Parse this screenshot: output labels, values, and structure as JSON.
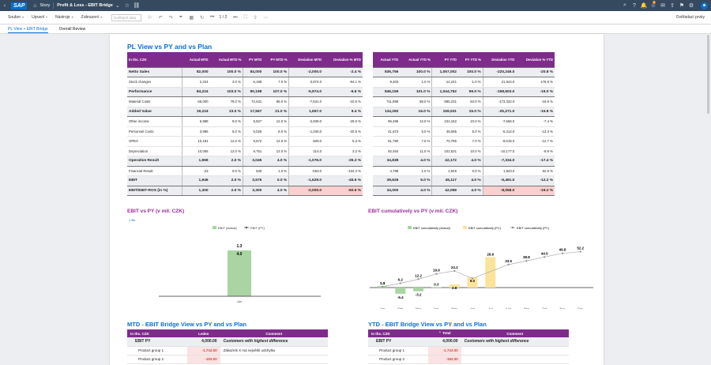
{
  "shell": {
    "logo": "SAP",
    "app": "Story",
    "story": "Profit & Loss - EBIT Bridge",
    "notif_count": "6"
  },
  "toolbar": {
    "menus": [
      "Soubor",
      "Upravit",
      "Nástroje",
      "Zobrazení"
    ],
    "search_placeholder": "Dvěřejně data",
    "page": "1 / 2",
    "right": "Ověřadací prvky"
  },
  "tabs": [
    "PL View + EBIT Bridge",
    "Overall Review"
  ],
  "pl": {
    "title": "PL View vs PY and vs Plan",
    "mtd_headers": [
      "In ths. CZK",
      "Actual MTD",
      "Actual MTD %",
      "PY MTD",
      "PY MTD %",
      "Deviation MTD",
      "Deviation % MTD"
    ],
    "ytd_headers": [
      "Actual YTD",
      "Actual YTD %",
      "PY YTD",
      "PY YTD %",
      "Deviation YTD",
      "Deviation % YTD"
    ],
    "rows": [
      {
        "label": "Netto Sales",
        "b": true,
        "m": [
          "82,000",
          "100.0 %",
          "84,000",
          "100.0 %",
          "-2,000.0",
          "-2.4 %"
        ],
        "y": [
          "836,756",
          "100.0 %",
          "1,057,002",
          "100.0 %",
          "-220,246.0",
          "-20.8 %"
        ]
      },
      {
        "label": "Stock changes",
        "m": [
          "2,224",
          "3.0 %",
          "6,198",
          "7.0 %",
          "-3,974.0",
          "-64.1 %"
        ],
        "y": [
          "9,403",
          "1.0 %",
          "-12,241",
          "-1.0 %",
          "21,644.0",
          "176.8 %"
        ]
      },
      {
        "label": "Performance",
        "b": true,
        "m": [
          "84,224",
          "103.0 %",
          "90,198",
          "107.0 %",
          "-5,974.0",
          "-6.6 %"
        ],
        "y": [
          "846,159",
          "101.0 %",
          "1,044,762",
          "99.0 %",
          "-198,603.0",
          "-19.0 %"
        ]
      },
      {
        "label": "Material Costs",
        "m": [
          "65,000",
          "79.0 %",
          "72,631",
          "86.0 %",
          "-7,631.0",
          "-10.5 %"
        ],
        "y": [
          "711,899",
          "85.0 %",
          "885,231",
          "84.0 %",
          "-173,332.0",
          "-19.6 %"
        ]
      },
      {
        "label": "Added Value",
        "b": true,
        "m": [
          "19,224",
          "23.0 %",
          "17,567",
          "21.0 %",
          "1,657.0",
          "9.4 %"
        ],
        "y": [
          "134,260",
          "16.0 %",
          "159,531",
          "15.0 %",
          "-25,271.0",
          "-15.8 %"
        ]
      },
      {
        "label": "Other income",
        "m": [
          "6,988",
          "9.0 %",
          "9,927",
          "12.0 %",
          "-2,939.0",
          "-29.6 %"
        ],
        "y": [
          "96,486",
          "12.0 %",
          "104,152",
          "10.0 %",
          "-7,666.0",
          "-7.4 %"
        ]
      },
      {
        "label": "Personnel Costs",
        "m": [
          "3,996",
          "5.0 %",
          "5,026",
          "6.0 %",
          "-1,030.0",
          "-20.5 %"
        ],
        "y": [
          "41,673",
          "5.0 %",
          "48,085",
          "5.0 %",
          "-6,412.0",
          "-13.3 %"
        ]
      },
      {
        "label": "OPEX",
        "m": [
          "10,181",
          "12.0 %",
          "9,672",
          "12.0 %",
          "509.0",
          "5.3 %"
        ],
        "y": [
          "61,780",
          "7.0 %",
          "70,795",
          "7.0 %",
          "-9,015.0",
          "-12.7 %"
        ]
      },
      {
        "label": "Depreciation",
        "m": [
          "10,065",
          "12.0 %",
          "9,751",
          "12.0 %",
          "314.0",
          "3.2 %"
        ],
        "y": [
          "92,454",
          "11.0 %",
          "102,631",
          "10.0 %",
          "-10,177.0",
          "-9.9 %"
        ]
      },
      {
        "label": "Operative Result",
        "b": true,
        "m": [
          "1,969",
          "2.0 %",
          "3,045",
          "4.0 %",
          "-1,076.0",
          "-35.3 %"
        ],
        "y": [
          "34,838",
          "4.0 %",
          "42,172",
          "4.0 %",
          "-7,334.0",
          "-17.4 %"
        ]
      },
      {
        "label": "Financial Result",
        "m": [
          "-23",
          "0.0 %",
          "530",
          "1.0 %",
          "-553.0",
          "-104.3 %"
        ],
        "y": [
          "4,788",
          "1.0 %",
          "2,945",
          "0.0 %",
          "1,843.0",
          "62.6 %"
        ]
      },
      {
        "label": "EBIT",
        "b": true,
        "m": [
          "1,946",
          "2.0 %",
          "3,575",
          "0.0 %",
          "-1,629.0",
          "-45.6 %"
        ],
        "y": [
          "39,626",
          "5.0 %",
          "45,117",
          "4.0 %",
          "-5,491.0",
          "-12.2 %"
        ]
      },
      {
        "label": "EBIT/EBIT-ROS (in %)",
        "b": true,
        "pk": true,
        "m": [
          "1,300",
          "2.0 %",
          "3,300",
          "4.0 %",
          "-2,000.0",
          "-60.6 %"
        ],
        "y": [
          "34,000",
          "4.0 %",
          "42,058",
          "4.0 %",
          "-8,058.0",
          "-19.2 %"
        ]
      }
    ]
  },
  "ebit_chart": {
    "title": "EBIT vs PY (v mil. CZK)",
    "filter_label": "1 file",
    "legend": [
      "EBIT (Actual)",
      "EBIT (PY)"
    ],
    "colors": {
      "actual": "#a8d5a2",
      "py": "#777777"
    }
  },
  "chart_data": [
    {
      "type": "bar",
      "title": "EBIT vs PY (v mil. CZK)",
      "categories": [
        "Jan"
      ],
      "series": [
        {
          "name": "EBIT (Actual)",
          "values": [
            4.0
          ]
        },
        {
          "name": "EBIT (PY)",
          "values": [
            1.3
          ]
        }
      ],
      "legend": "top-center"
    },
    {
      "type": "bar",
      "title": "EBIT cumulatively vs PY (v mil. CZK)",
      "categories": [
        "Jan",
        "Feb",
        "Mar",
        "Apr",
        "May",
        "Jun",
        "Jul",
        "Aug",
        "Sep",
        "Oct",
        "Nov",
        "Dec"
      ],
      "series": [
        {
          "name": "EBIT cumulatively (Actual)",
          "values": [
            1.3,
            -5.4,
            -3.2,
            0.3,
            null,
            null,
            null,
            null,
            null,
            null,
            null,
            null
          ]
        },
        {
          "name": "EBIT cumulatively (FC)",
          "values": [
            null,
            null,
            null,
            null,
            2.8,
            9.0,
            26.6,
            null,
            null,
            null,
            null,
            null
          ]
        },
        {
          "name": "EBIT cumulatively (PY)",
          "values": [
            1.3,
            6.2,
            12.2,
            19.9,
            24.3,
            13.3,
            null,
            33.5,
            38.8,
            44.5,
            49.8,
            52.2
          ]
        }
      ],
      "legend": "top-center"
    }
  ],
  "cum_chart": {
    "title": "EBIT cumulatively vs PY (v mil. CZK)",
    "legend": [
      "EBIT cumulatively (Actual)",
      "EBIT cumulatively (FC)",
      "EBIT cumulatively (PY)"
    ],
    "colors": {
      "actual": "#a8d5a2",
      "fc": "#fbe49a",
      "py": "#9a9a9a"
    }
  },
  "mtd_bridge": {
    "title": "MTD - EBIT Bridge View vs PY and vs Plan",
    "headers": [
      "In ths. CZK",
      "Leden",
      "Comment"
    ],
    "rows": [
      {
        "label": "EBIT PY",
        "value": "4,000.00",
        "comment": "Customers with highest difference",
        "b": true
      },
      {
        "label": "Product group 1",
        "value": "-1,744.00",
        "comment": "Zákazník X má největší odchylku"
      },
      {
        "label": "Product group 2",
        "value": "-192.00",
        "comment": ""
      }
    ]
  },
  "ytd_bridge": {
    "title": "YTD - EBIT Bridge View vs PY and vs Plan",
    "headers": [
      "In ths. CZK",
      "Total",
      "Comment"
    ],
    "rows": [
      {
        "label": "EBIT PY",
        "value": "4,000.00",
        "comment": "Customers with highest difference",
        "b": true
      },
      {
        "label": "Product group 1",
        "value": "-1,744.00",
        "comment": ""
      },
      {
        "label": "Product group 2",
        "value": "-192.00",
        "comment": ""
      }
    ]
  }
}
